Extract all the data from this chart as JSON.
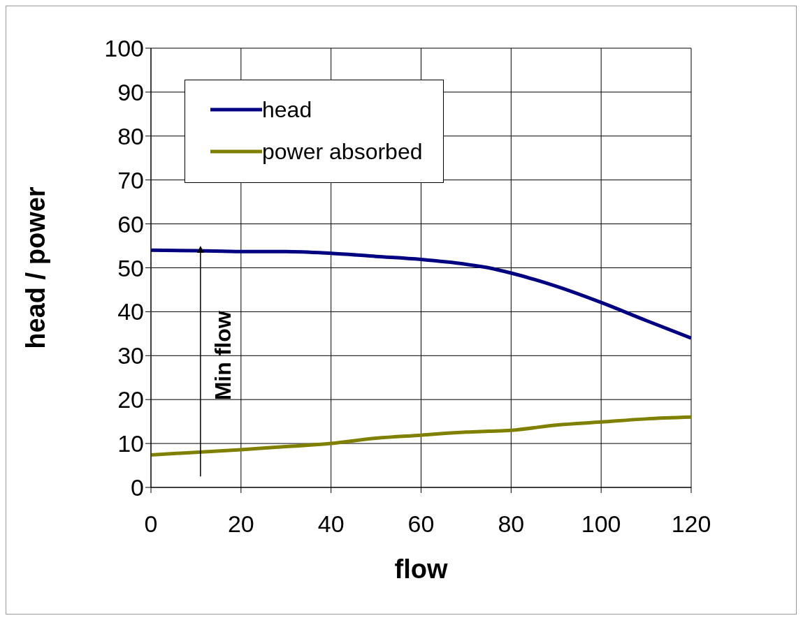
{
  "chart_data": {
    "type": "line",
    "xlabel": "flow",
    "ylabel": "head / power",
    "x": [
      0,
      10,
      20,
      30,
      40,
      50,
      60,
      70,
      75,
      80,
      90,
      100,
      110,
      120
    ],
    "series": [
      {
        "name": "head",
        "color": "#000080",
        "values": [
          54,
          53.9,
          53.7,
          53.7,
          53.3,
          52.6,
          51.9,
          50.8,
          50,
          48.8,
          45.8,
          42.1,
          38,
          34
        ]
      },
      {
        "name": "power absorbed",
        "color": "#808000",
        "values": [
          7.4,
          8,
          8.6,
          9.3,
          10,
          11.2,
          11.9,
          12.6,
          12.8,
          13,
          14.2,
          14.9,
          15.6,
          16
        ]
      }
    ],
    "xlim": [
      0,
      120
    ],
    "xticks": [
      0,
      20,
      40,
      60,
      80,
      100,
      120
    ],
    "ylim": [
      0,
      100
    ],
    "yticks": [
      0,
      10,
      20,
      30,
      40,
      50,
      60,
      70,
      80,
      90,
      100
    ],
    "grid": true,
    "legend": "top left",
    "marker": "none",
    "line_style": "solid",
    "ref_lines": [
      {
        "axis": "x",
        "value": 11,
        "label": "Min flow"
      }
    ]
  }
}
